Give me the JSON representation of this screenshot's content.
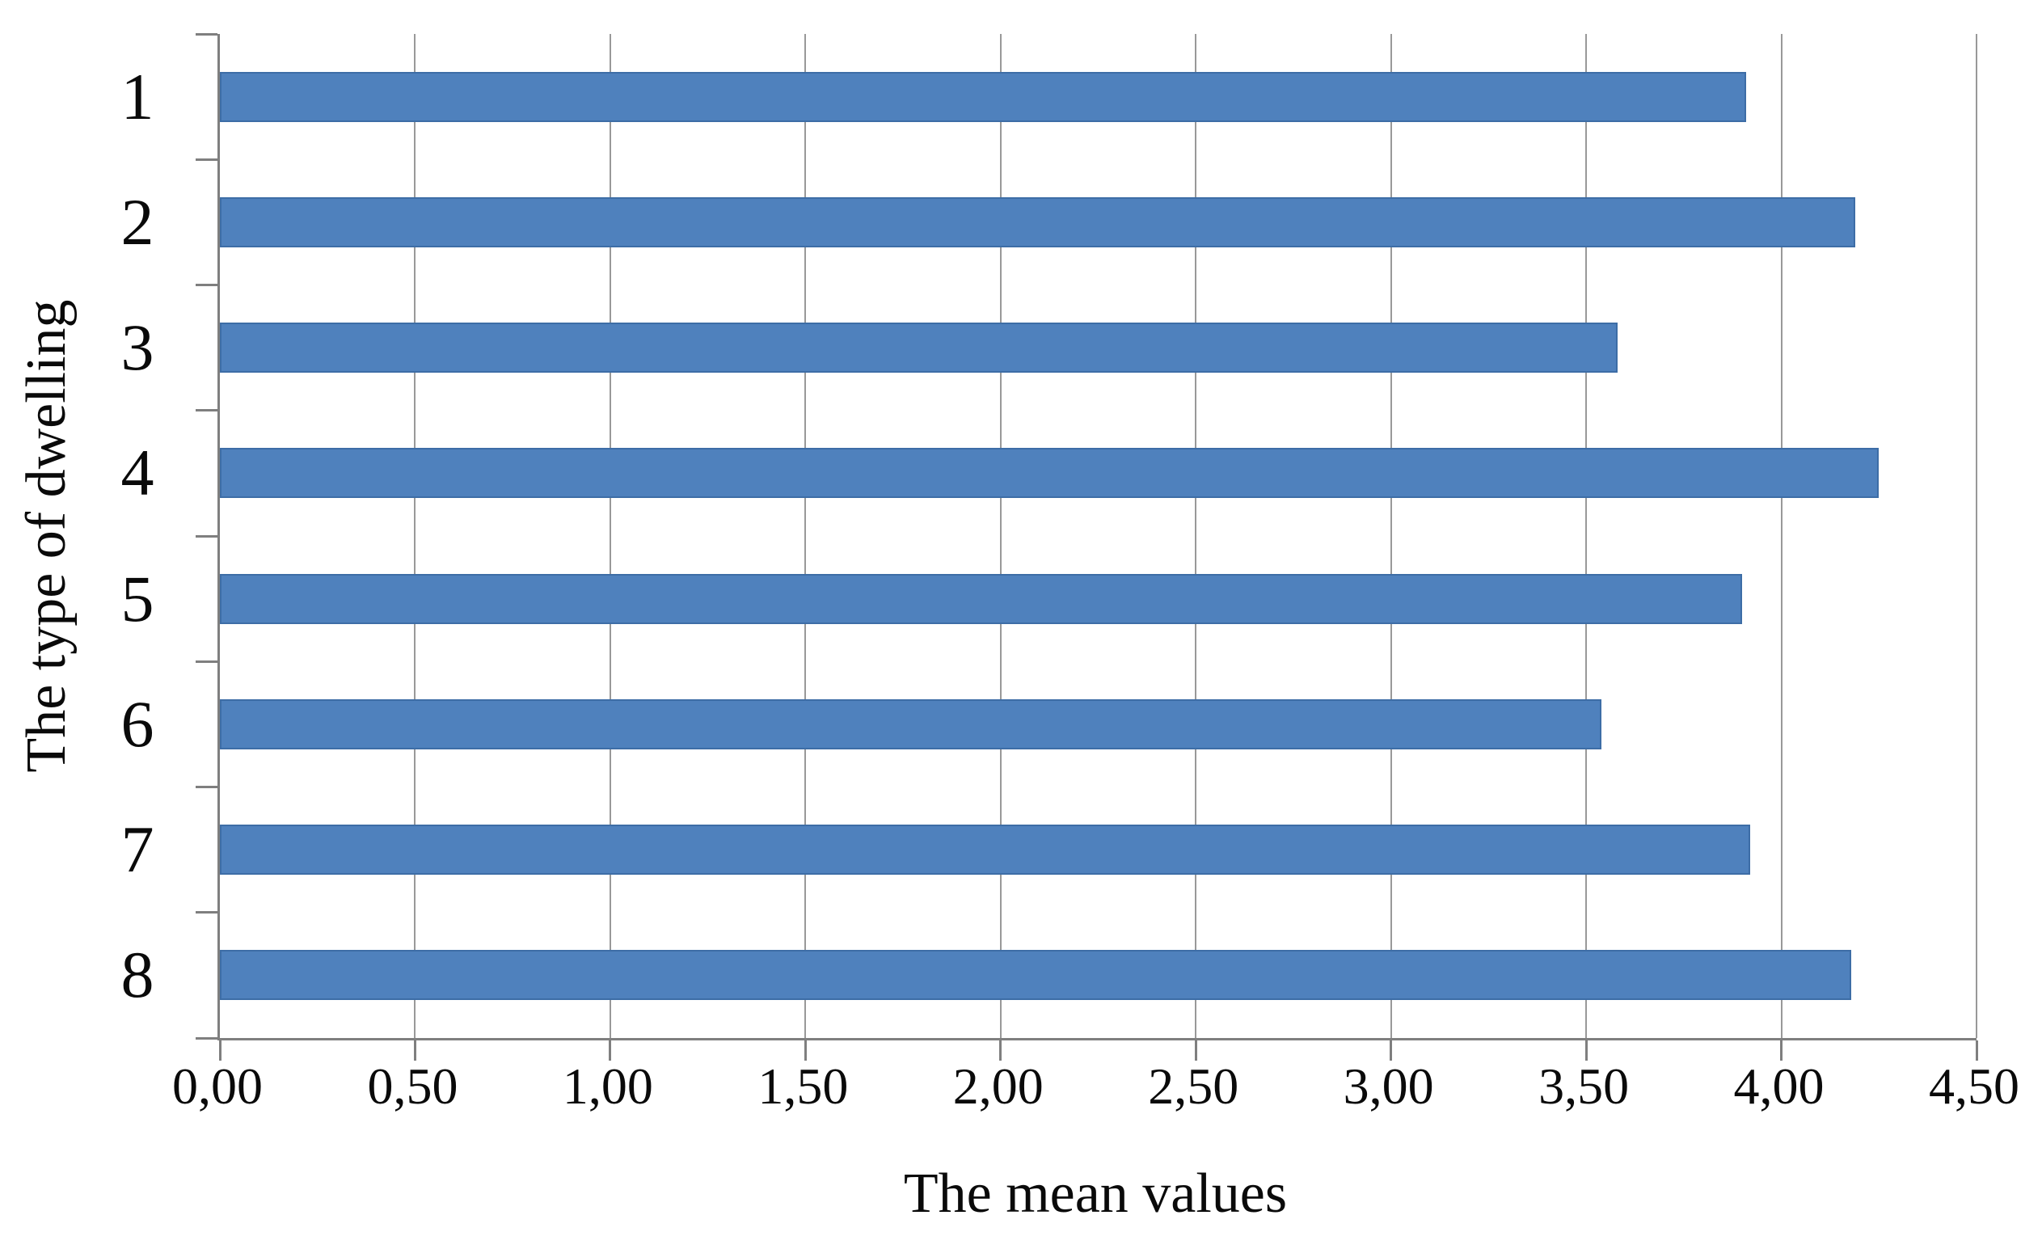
{
  "chart_data": {
    "type": "bar",
    "orientation": "horizontal",
    "categories": [
      "1",
      "2",
      "3",
      "4",
      "5",
      "6",
      "7",
      "8"
    ],
    "values": [
      3.91,
      4.19,
      3.58,
      4.25,
      3.9,
      3.54,
      3.92,
      4.18
    ],
    "xlabel": "The mean values",
    "ylabel": "The type of dwelling",
    "xlim": [
      0,
      4.5
    ],
    "xticks": [
      0,
      0.5,
      1.0,
      1.5,
      2.0,
      2.5,
      3.0,
      3.5,
      4.0,
      4.5
    ],
    "xtick_labels": [
      "0,00",
      "0,50",
      "1,00",
      "1,50",
      "2,00",
      "2,50",
      "3,00",
      "3,50",
      "4,00",
      "4,50"
    ],
    "grid": true,
    "legend": false,
    "title": "",
    "colors": {
      "bar_fill": "#4F81BD",
      "bar_border": "#3D6DA6",
      "gridline": "#999999",
      "axis": "#7f7f7f",
      "text": "#0a0a0a",
      "background": "#ffffff"
    }
  }
}
